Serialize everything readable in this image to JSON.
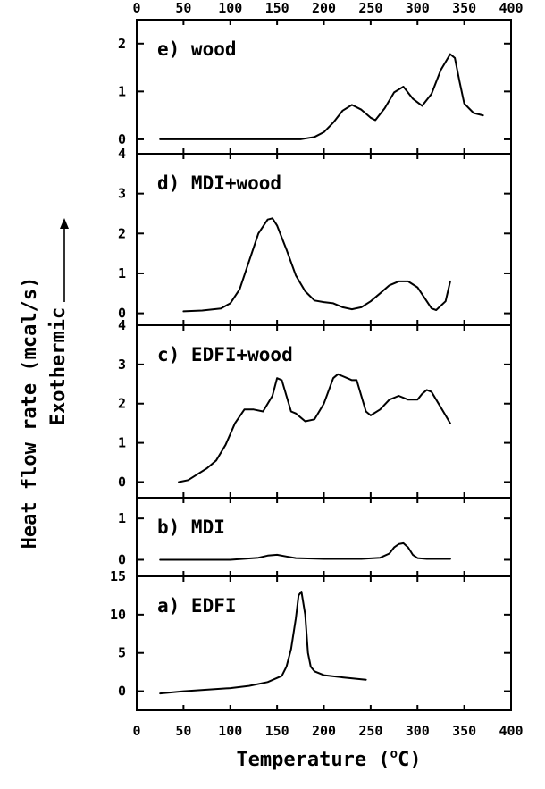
{
  "chart_data": {
    "type": "line",
    "xlabel": "Temperature (°C)",
    "xlabel_parts": {
      "pre": "Temperature (",
      "degree": "o",
      "post": "C)"
    },
    "ylabel": "Heat flow rate (mcal/s)",
    "ylabel_secondary": "Exothermic",
    "x_range": [
      0,
      400
    ],
    "x_ticks": [
      0,
      50,
      100,
      150,
      200,
      250,
      300,
      350,
      400
    ],
    "grid": false,
    "panels": [
      {
        "label": "e) wood",
        "ylim": [
          -0.3,
          2.5
        ],
        "y_ticks": [
          0,
          1,
          2
        ],
        "x": [
          25,
          100,
          175,
          190,
          200,
          210,
          220,
          230,
          240,
          250,
          255,
          265,
          275,
          285,
          295,
          305,
          315,
          325,
          335,
          340,
          345,
          350,
          360,
          370
        ],
        "y": [
          0,
          0,
          0,
          0.05,
          0.15,
          0.35,
          0.6,
          0.72,
          0.62,
          0.45,
          0.4,
          0.65,
          0.98,
          1.1,
          0.85,
          0.7,
          0.95,
          1.45,
          1.78,
          1.7,
          1.2,
          0.75,
          0.55,
          0.5
        ]
      },
      {
        "label": "d) MDI+wood",
        "ylim": [
          -0.3,
          4
        ],
        "y_ticks": [
          0,
          1,
          2,
          3,
          4
        ],
        "x": [
          50,
          70,
          90,
          100,
          110,
          120,
          130,
          140,
          145,
          150,
          160,
          170,
          180,
          190,
          200,
          210,
          220,
          230,
          240,
          250,
          260,
          270,
          280,
          290,
          300,
          310,
          315,
          320,
          330,
          335
        ],
        "y": [
          0.05,
          0.07,
          0.12,
          0.25,
          0.6,
          1.3,
          2.0,
          2.35,
          2.38,
          2.2,
          1.6,
          0.95,
          0.55,
          0.32,
          0.28,
          0.25,
          0.15,
          0.1,
          0.15,
          0.3,
          0.5,
          0.7,
          0.8,
          0.8,
          0.65,
          0.3,
          0.12,
          0.08,
          0.3,
          0.8
        ]
      },
      {
        "label": "c) EDFI+wood",
        "ylim": [
          -0.4,
          4
        ],
        "y_ticks": [
          0,
          1,
          2,
          3,
          4
        ],
        "x": [
          45,
          55,
          65,
          75,
          85,
          95,
          105,
          115,
          125,
          135,
          145,
          150,
          155,
          160,
          165,
          170,
          180,
          190,
          200,
          210,
          215,
          220,
          225,
          230,
          235,
          240,
          245,
          250,
          260,
          270,
          280,
          290,
          300,
          305,
          310,
          315,
          320,
          330,
          335
        ],
        "y": [
          0,
          0.05,
          0.2,
          0.35,
          0.55,
          0.95,
          1.5,
          1.85,
          1.85,
          1.8,
          2.2,
          2.65,
          2.6,
          2.2,
          1.8,
          1.75,
          1.55,
          1.6,
          2.0,
          2.65,
          2.75,
          2.7,
          2.65,
          2.6,
          2.6,
          2.2,
          1.8,
          1.7,
          1.85,
          2.1,
          2.2,
          2.1,
          2.1,
          2.25,
          2.35,
          2.3,
          2.1,
          1.7,
          1.5
        ]
      },
      {
        "label": "b) MDI",
        "ylim": [
          -0.4,
          1.5
        ],
        "y_ticks": [
          0,
          1
        ],
        "x": [
          25,
          100,
          130,
          140,
          150,
          160,
          170,
          200,
          240,
          260,
          270,
          275,
          280,
          285,
          290,
          295,
          300,
          310,
          335
        ],
        "y": [
          0,
          0,
          0.05,
          0.1,
          0.12,
          0.08,
          0.04,
          0.02,
          0.02,
          0.05,
          0.15,
          0.3,
          0.38,
          0.4,
          0.3,
          0.12,
          0.04,
          0.02,
          0.02
        ]
      },
      {
        "label": "a) EDFI",
        "ylim": [
          -2.5,
          15
        ],
        "y_ticks": [
          0,
          5,
          10,
          15
        ],
        "x": [
          25,
          50,
          100,
          120,
          140,
          155,
          160,
          165,
          170,
          173,
          176,
          180,
          183,
          186,
          190,
          200,
          220,
          245
        ],
        "y": [
          -0.3,
          0,
          0.4,
          0.7,
          1.2,
          2.0,
          3.2,
          5.5,
          9.5,
          12.5,
          13.0,
          10.0,
          5.0,
          3.2,
          2.6,
          2.1,
          1.8,
          1.5
        ]
      }
    ]
  }
}
